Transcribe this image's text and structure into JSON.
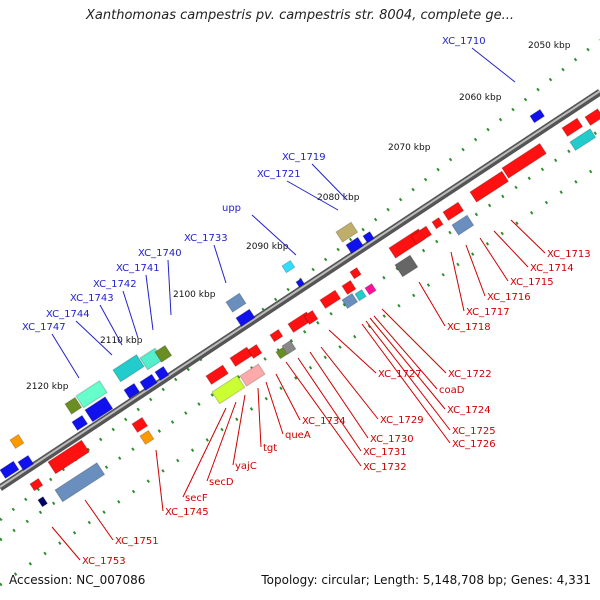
{
  "title": "Xanthomonas campestris pv. campestris str. 8004, complete ge...",
  "footer": {
    "accession": "Accession: NC_007086",
    "summary": "Topology: circular; Length: 5,148,708 bp; Genes: 4,331"
  },
  "colors": {
    "backbone": "#808080",
    "ticks": "#2f8f2f",
    "upper_label": "#2222cc",
    "lower_label": "#cc0000",
    "forward_gene": "#ff1111",
    "reverse_gene": "#1111ee"
  },
  "axis_ticks": [
    "2050 kbp",
    "2060 kbp",
    "2070 kbp",
    "2080 kbp",
    "2090 kbp",
    "2100 kbp",
    "2110 kbp",
    "2120 kbp"
  ],
  "upper_labels": [
    "XC_1710",
    "XC_1719",
    "XC_1721",
    "upp",
    "XC_1733",
    "XC_1740",
    "XC_1741",
    "XC_1742",
    "XC_1743",
    "XC_1744",
    "XC_1747"
  ],
  "lower_labels": [
    "XC_1713",
    "XC_1714",
    "XC_1715",
    "XC_1716",
    "XC_1717",
    "XC_1718",
    "XC_1722",
    "XC_1727",
    "coaD",
    "XC_1724",
    "XC_1725",
    "XC_1726",
    "XC_1729",
    "XC_1730",
    "XC_1731",
    "XC_1732",
    "XC_1734",
    "queA",
    "tgt",
    "yajC",
    "secD",
    "secF",
    "XC_1745",
    "XC_1751",
    "XC_1753"
  ]
}
